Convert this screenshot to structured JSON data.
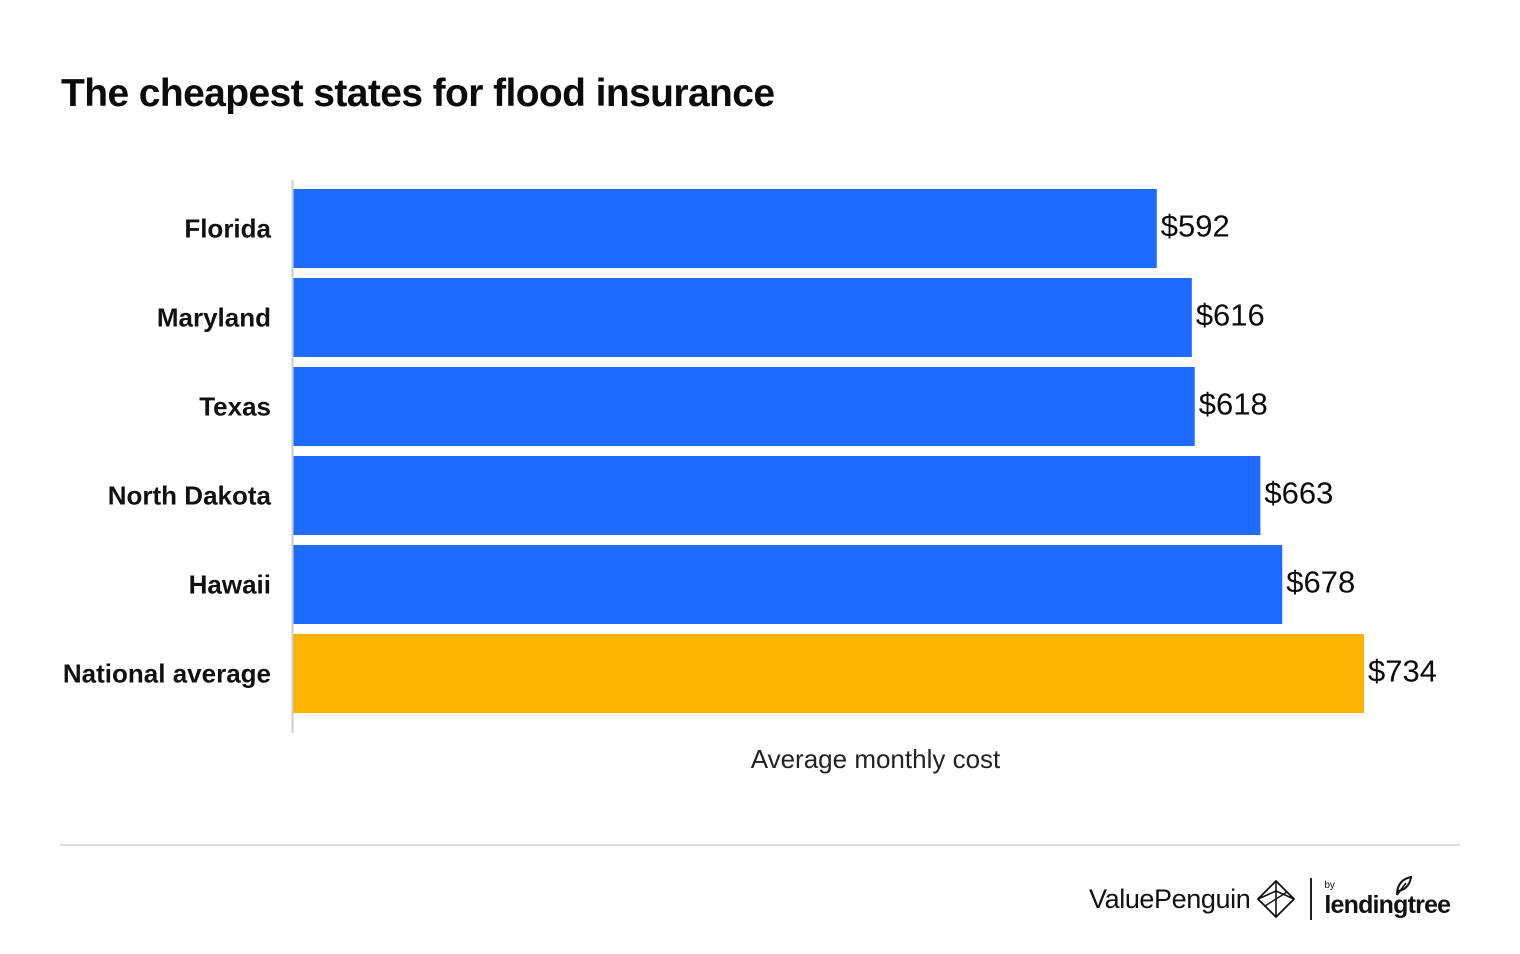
{
  "chart_data": {
    "type": "bar",
    "orientation": "horizontal",
    "title": "The cheapest states for flood insurance",
    "xlabel": "Average monthly cost",
    "ylabel": "",
    "categories": [
      "Florida",
      "Maryland",
      "Texas",
      "North Dakota",
      "Hawaii",
      "National average"
    ],
    "values": [
      592,
      616,
      618,
      663,
      678,
      734
    ],
    "value_labels": [
      "$592",
      "$616",
      "$618",
      "$663",
      "$678",
      "$734"
    ],
    "xlim": [
      0,
      734
    ],
    "grid": false,
    "legend": "none",
    "bar_colors": [
      "#206bff",
      "#206bff",
      "#206bff",
      "#206bff",
      "#206bff",
      "#f9b300"
    ],
    "axis_color": "#cccccc"
  },
  "footer": {
    "brand_primary": "ValuePenguin",
    "brand_by": "by",
    "brand_secondary": "lendingtree",
    "brand_mark_icon": "penguin-mark-icon",
    "leaf_icon": "leaf-icon"
  }
}
